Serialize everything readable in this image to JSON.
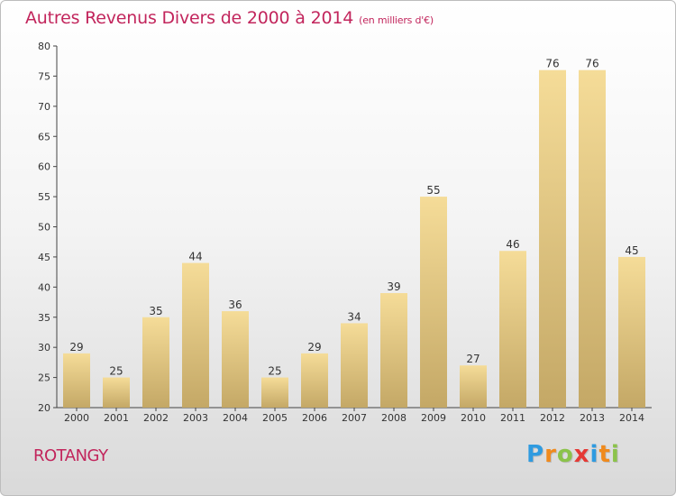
{
  "header": {
    "title": "Autres Revenus Divers de 2000 à 2014",
    "subtitle": "(en milliers d'€)"
  },
  "commune": "ROTANGY",
  "logo": {
    "text": "Proxiti",
    "letters": [
      {
        "ch": "P",
        "color": "#2f9be0"
      },
      {
        "ch": "r",
        "color": "#f08a1c"
      },
      {
        "ch": "o",
        "color": "#8bc34a"
      },
      {
        "ch": "x",
        "color": "#e53935"
      },
      {
        "ch": "i",
        "color": "#2f9be0"
      },
      {
        "ch": "t",
        "color": "#f08a1c"
      },
      {
        "ch": "i",
        "color": "#8bc34a"
      }
    ]
  },
  "colors": {
    "title": "#c2255c",
    "bar_light": "#f5dc98",
    "bar_dark": "#c4a866",
    "axis": "#444444"
  },
  "chart_data": {
    "type": "bar",
    "title": "Autres Revenus Divers de 2000 à 2014",
    "categories": [
      "2000",
      "2001",
      "2002",
      "2003",
      "2004",
      "2005",
      "2006",
      "2007",
      "2008",
      "2009",
      "2010",
      "2011",
      "2012",
      "2013",
      "2014"
    ],
    "values": [
      29,
      25,
      35,
      44,
      36,
      25,
      29,
      34,
      39,
      55,
      27,
      46,
      76,
      76,
      45
    ],
    "ylim": [
      20,
      80
    ],
    "yticks": [
      20,
      25,
      30,
      35,
      40,
      45,
      50,
      55,
      60,
      65,
      70,
      75,
      80
    ],
    "grid": false,
    "xlabel": "",
    "ylabel": ""
  }
}
